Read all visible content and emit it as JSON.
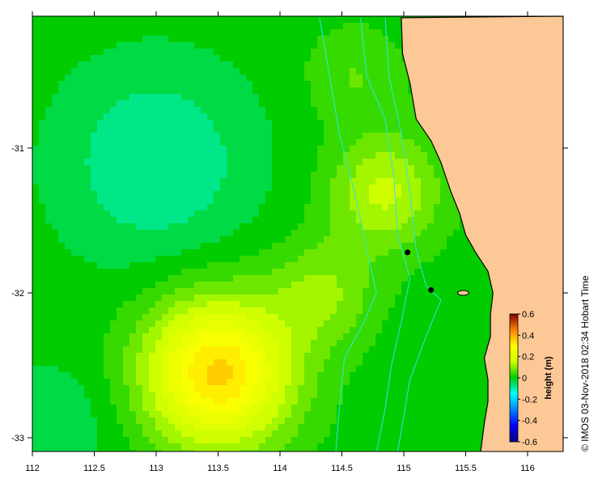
{
  "credit": "© IMOS 03-Nov-2018 02:34 Hobart Time",
  "map": {
    "lon_range": [
      112,
      116.3
    ],
    "lat_range": [
      -33.1,
      -30.1
    ],
    "x_ticks": [
      {
        "value": 112,
        "label": "112"
      },
      {
        "value": 112.5,
        "label": "112.5"
      },
      {
        "value": 113,
        "label": "113"
      },
      {
        "value": 113.5,
        "label": "113.5"
      },
      {
        "value": 114,
        "label": "114"
      },
      {
        "value": 114.5,
        "label": "114.5"
      },
      {
        "value": 115,
        "label": "115"
      },
      {
        "value": 115.5,
        "label": "115.5"
      },
      {
        "value": 116,
        "label": "116"
      }
    ],
    "y_ticks": [
      {
        "value": -31,
        "label": "-31"
      },
      {
        "value": -32,
        "label": "-32"
      },
      {
        "value": -33,
        "label": "-33"
      }
    ],
    "colors": {
      "land": "#fcc896",
      "coastline": "#000000",
      "bathymetry_contour": "#2ce6e6",
      "background_field": "#0fcc14"
    },
    "anomalies": [
      {
        "lon": 113.0,
        "lat": -31.1,
        "value": -0.1,
        "sigma": 0.55
      },
      {
        "lon": 112.2,
        "lat": -32.9,
        "value": -0.05,
        "sigma": 0.35
      },
      {
        "lon": 113.5,
        "lat": -32.55,
        "value": 0.35,
        "sigma": 0.42
      },
      {
        "lon": 114.85,
        "lat": -31.3,
        "value": 0.15,
        "sigma": 0.32
      },
      {
        "lon": 114.35,
        "lat": -32.0,
        "value": 0.1,
        "sigma": 0.3
      },
      {
        "lon": 114.6,
        "lat": -30.5,
        "value": 0.06,
        "sigma": 0.28
      }
    ],
    "stations": [
      {
        "lon": 115.03,
        "lat": -31.72
      },
      {
        "lon": 115.22,
        "lat": -31.98
      }
    ]
  },
  "colorbar": {
    "title": "height (m)",
    "range": [
      -0.6,
      0.6
    ],
    "tick_labels": [
      "0.6",
      "0.4",
      "0.2",
      "0",
      "-0.2",
      "-0.4",
      "-0.6"
    ],
    "tick_values": [
      0.6,
      0.4,
      0.2,
      0,
      -0.2,
      -0.4,
      -0.6
    ]
  }
}
